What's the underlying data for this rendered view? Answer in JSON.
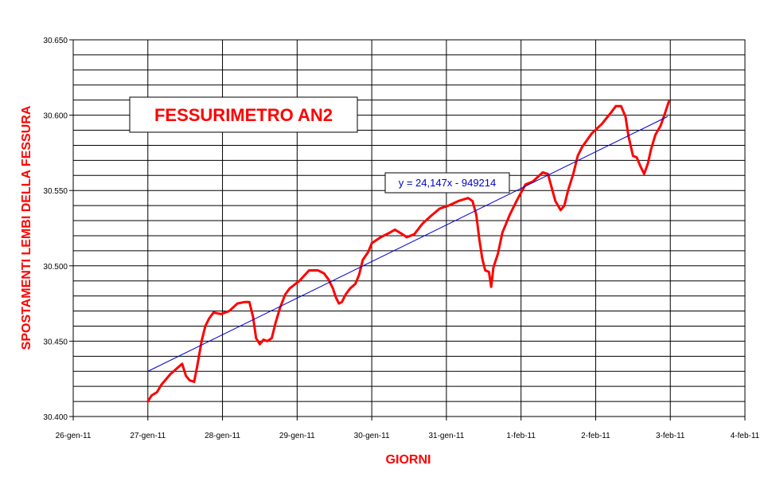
{
  "chart_data": {
    "type": "line",
    "title": "FESSURIMETRO AN2",
    "annotation": "y = 24,147x - 949214",
    "x_label": "GIORNI",
    "y_label": "SPOSTAMENTI LEMBI DELLA FESSURA",
    "xlim": [
      40569,
      40578
    ],
    "xticks": [
      {
        "value": 40569,
        "label": "26-gen-11"
      },
      {
        "value": 40570,
        "label": "27-gen-11"
      },
      {
        "value": 40571,
        "label": "28-gen-11"
      },
      {
        "value": 40572,
        "label": "29-gen-11"
      },
      {
        "value": 40573,
        "label": "30-gen-11"
      },
      {
        "value": 40574,
        "label": "31-gen-11"
      },
      {
        "value": 40575,
        "label": "1-feb-11"
      },
      {
        "value": 40576,
        "label": "2-feb-11"
      },
      {
        "value": 40577,
        "label": "3-feb-11"
      },
      {
        "value": 40578,
        "label": "4-feb-11"
      }
    ],
    "ylim": [
      30.4,
      30.65
    ],
    "yticks": [
      {
        "value": 30.4,
        "label": "30.400"
      },
      {
        "value": 30.45,
        "label": "30.450"
      },
      {
        "value": 30.5,
        "label": "30.500"
      },
      {
        "value": 30.55,
        "label": "30.550"
      },
      {
        "value": 30.6,
        "label": "30.600"
      },
      {
        "value": 30.65,
        "label": "30.650"
      }
    ],
    "minor_yticks": [
      30.41,
      30.42,
      30.43,
      30.44,
      30.46,
      30.47,
      30.48,
      30.49,
      30.51,
      30.52,
      30.53,
      30.54,
      30.56,
      30.57,
      30.58,
      30.59,
      30.61,
      30.62,
      30.63,
      30.64
    ],
    "grid": true,
    "series": [
      {
        "color": "#ff0000",
        "x": [
          40570.0,
          40570.05,
          40570.12,
          40570.18,
          40570.3,
          40570.39,
          40570.46,
          40570.51,
          40570.56,
          40570.62,
          40570.66,
          40570.72,
          40570.77,
          40570.82,
          40570.88,
          40570.98,
          40571.09,
          40571.2,
          40571.3,
          40571.36,
          40571.41,
          40571.45,
          40571.5,
          40571.55,
          40571.6,
          40571.66,
          40571.71,
          40571.77,
          40571.84,
          40571.9,
          40572.03,
          40572.16,
          40572.28,
          40572.36,
          40572.42,
          40572.48,
          40572.52,
          40572.56,
          40572.6,
          40572.65,
          40572.71,
          40572.78,
          40572.83,
          40572.88,
          40572.95,
          40573.0,
          40573.12,
          40573.24,
          40573.31,
          40573.41,
          40573.47,
          40573.57,
          40573.68,
          40573.79,
          40573.91,
          40574.03,
          40574.16,
          40574.29,
          40574.35,
          40574.4,
          40574.44,
          40574.48,
          40574.52,
          40574.57,
          40574.6,
          40574.63,
          40574.69,
          40574.75,
          40574.85,
          40574.95,
          40575.06,
          40575.16,
          40575.29,
          40575.36,
          40575.41,
          40575.46,
          40575.53,
          40575.58,
          40575.63,
          40575.7,
          40575.76,
          40575.82,
          40575.95,
          40576.08,
          40576.21,
          40576.27,
          40576.34,
          40576.4,
          40576.44,
          40576.5,
          40576.55,
          40576.6,
          40576.65,
          40576.7,
          40576.74,
          40576.8,
          40576.87,
          40576.92,
          40576.98
        ],
        "values": [
          30.41,
          30.414,
          30.416,
          30.421,
          30.428,
          30.432,
          30.435,
          30.427,
          30.424,
          30.423,
          30.433,
          30.45,
          30.46,
          30.465,
          30.469,
          30.468,
          30.47,
          30.475,
          30.476,
          30.476,
          30.466,
          30.452,
          30.448,
          30.451,
          30.45,
          30.452,
          30.462,
          30.472,
          30.481,
          30.485,
          30.49,
          30.497,
          30.497,
          30.495,
          30.491,
          30.485,
          30.479,
          30.475,
          30.476,
          30.481,
          30.485,
          30.488,
          30.494,
          30.504,
          30.509,
          30.515,
          30.519,
          30.522,
          30.524,
          30.521,
          30.519,
          30.521,
          30.528,
          30.533,
          30.538,
          30.54,
          30.543,
          30.545,
          30.543,
          30.534,
          30.518,
          30.505,
          30.497,
          30.496,
          30.486,
          30.499,
          30.508,
          30.522,
          30.534,
          30.544,
          30.554,
          30.556,
          30.562,
          30.561,
          30.552,
          30.543,
          30.537,
          30.54,
          30.55,
          30.561,
          30.573,
          30.579,
          30.588,
          30.594,
          30.602,
          30.606,
          30.606,
          30.599,
          30.586,
          30.573,
          30.572,
          30.566,
          30.561,
          30.568,
          30.577,
          30.587,
          30.593,
          30.6,
          30.609
        ]
      },
      {
        "color": "#0000cc",
        "x": [
          40570.0,
          40576.96
        ],
        "values": [
          30.43,
          30.599
        ]
      }
    ]
  }
}
